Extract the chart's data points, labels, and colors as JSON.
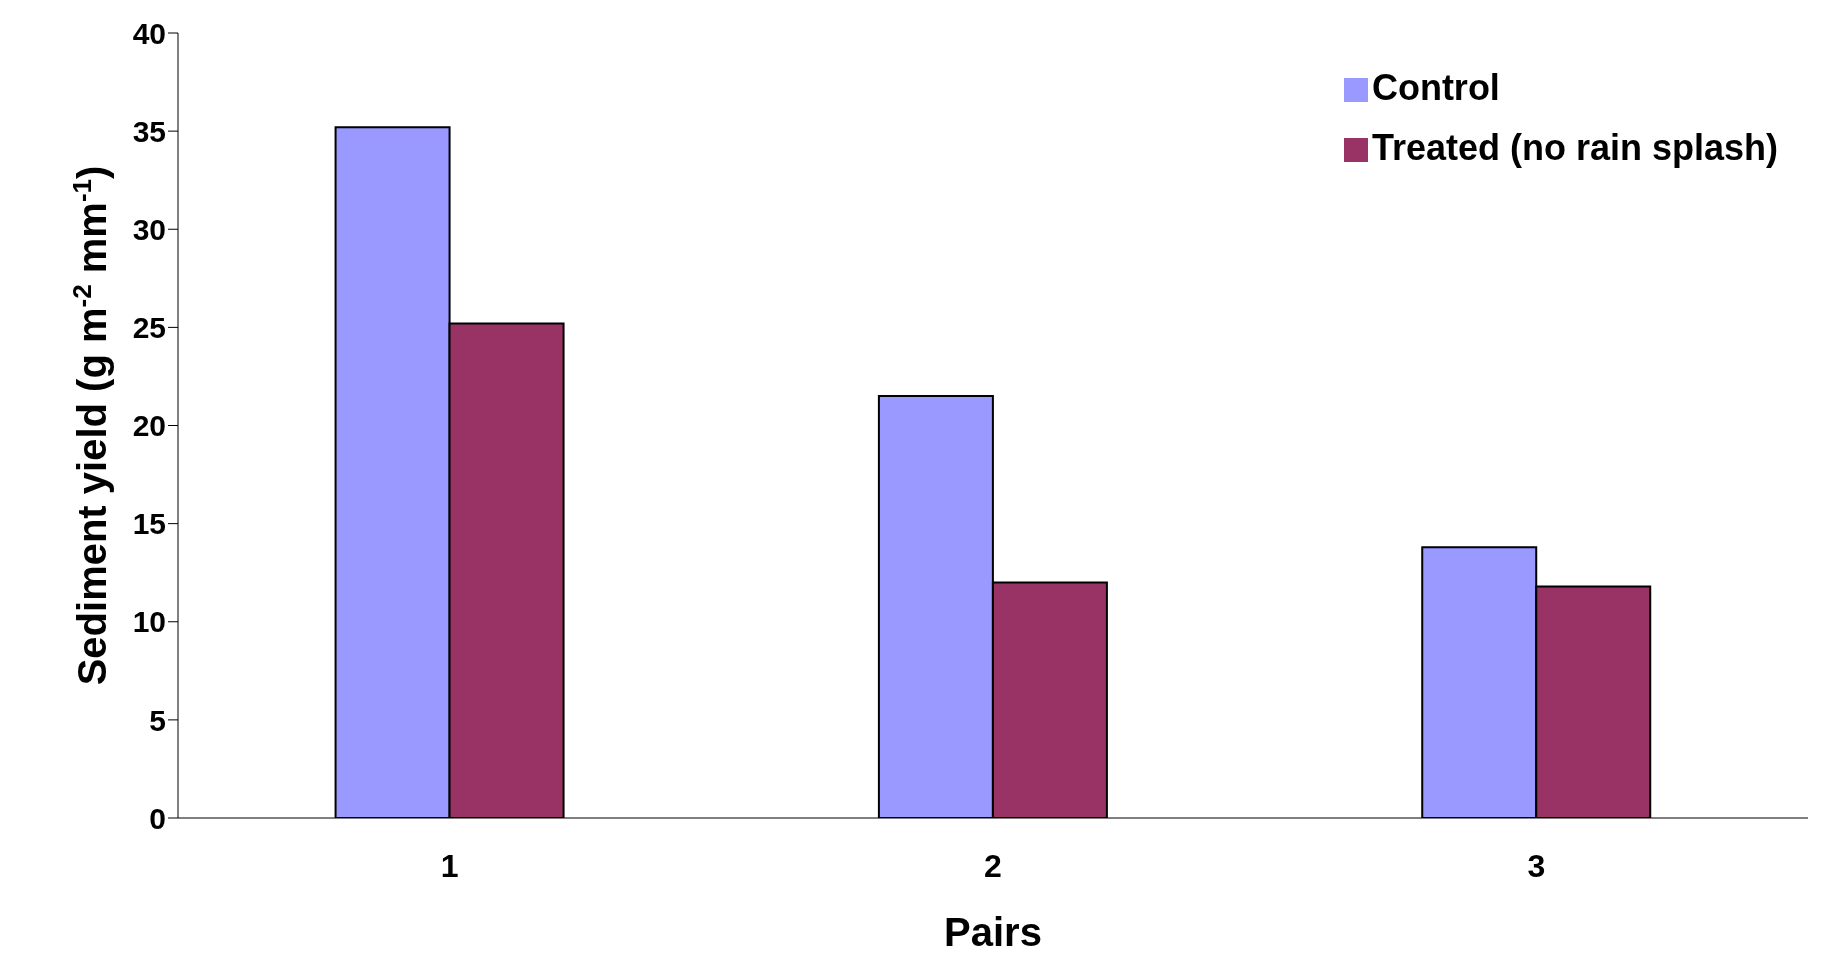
{
  "chart_data": {
    "type": "bar",
    "xlabel": "Pairs",
    "ylabel": "Sediment yield (g m$^{-2}$ mm$^{-1}$)",
    "categories": [
      "1",
      "2",
      "3"
    ],
    "series": [
      {
        "name": "Control",
        "color": "#9999ff",
        "values": [
          35.2,
          21.5,
          13.8
        ]
      },
      {
        "name": "Treated (no rain splash)",
        "color": "#993366",
        "values": [
          25.2,
          12.0,
          11.8
        ]
      }
    ],
    "ylim": [
      0,
      40
    ],
    "yticks": [
      0,
      5,
      10,
      15,
      20,
      25,
      30,
      35,
      40
    ],
    "grid": false,
    "legend": "top right"
  }
}
